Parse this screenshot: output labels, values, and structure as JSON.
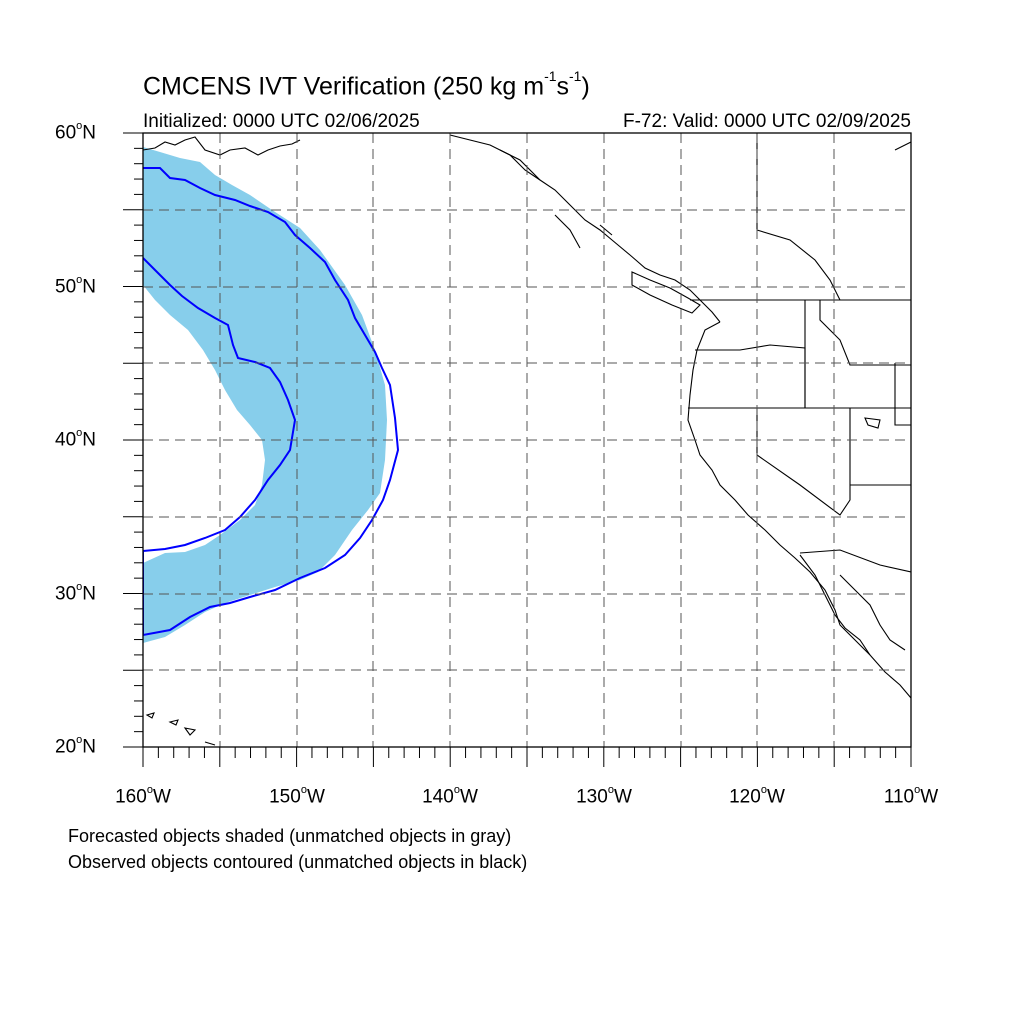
{
  "title": {
    "main": "CMCENS IVT Verification (250 kg m",
    "sup1": "-1",
    "mid": "s",
    "sup2": "-1",
    "end": ")"
  },
  "init_text": "Initialized: 0000 UTC 02/06/2025",
  "valid_text": "F-72: Valid: 0000 UTC 02/09/2025",
  "map": {
    "lon_range": [
      -160,
      -110
    ],
    "lat_range": [
      20,
      60
    ],
    "y_ticks": [
      {
        "num": "60",
        "hem": "N"
      },
      {
        "num": "50",
        "hem": "N"
      },
      {
        "num": "40",
        "hem": "N"
      },
      {
        "num": "30",
        "hem": "N"
      },
      {
        "num": "20",
        "hem": "N"
      }
    ],
    "x_ticks": [
      {
        "num": "160",
        "hem": "W"
      },
      {
        "num": "150",
        "hem": "W"
      },
      {
        "num": "140",
        "hem": "W"
      },
      {
        "num": "130",
        "hem": "W"
      },
      {
        "num": "120",
        "hem": "W"
      },
      {
        "num": "110",
        "hem": "W"
      }
    ],
    "forecast_fill_color": "#87ceeb",
    "observed_contour_color": "#0000ff",
    "grid_dashed": true
  },
  "notes": {
    "forecast": "Forecasted objects shaded (unmatched objects in gray)",
    "observed": "Observed objects contoured (unmatched objects in black)"
  }
}
